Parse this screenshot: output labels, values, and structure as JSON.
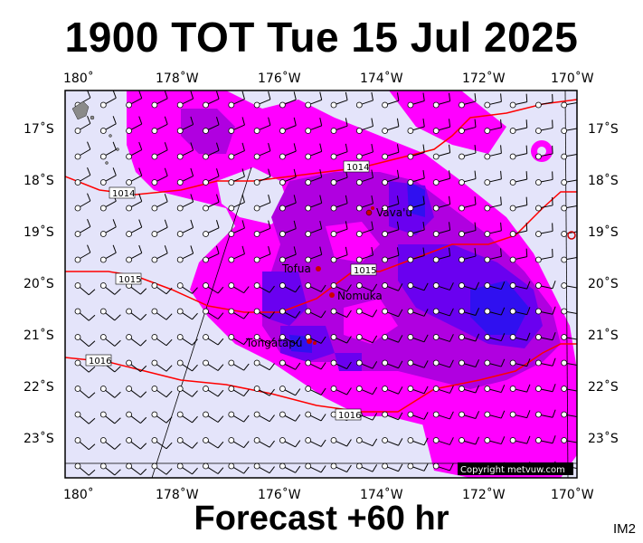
{
  "header": {
    "title": "1900 TOT Tue 15 Jul 2025"
  },
  "footer": {
    "forecast": "Forecast +60 hr",
    "corner_code": "IM2"
  },
  "map": {
    "lon_labels": [
      "180˚",
      "178˚W",
      "176˚W",
      "174˚W",
      "172˚W",
      "170˚W"
    ],
    "lat_labels": [
      "17˚S",
      "18˚S",
      "19˚S",
      "20˚S",
      "21˚S",
      "22˚S",
      "23˚S"
    ],
    "isobar_labels": [
      "1014",
      "1014",
      "1015",
      "1015",
      "1016",
      "1016"
    ],
    "places": [
      {
        "name": "Vava'u"
      },
      {
        "name": "Tofua"
      },
      {
        "name": "Nomuka"
      },
      {
        "name": "Tongatapu"
      }
    ],
    "copyright": "Copyright metvuw.com",
    "colors": {
      "background": "#e4e4fa",
      "rain_light": "#ff00ff",
      "rain_medium": "#b000e0",
      "rain_heavy": "#6a00f0",
      "rain_very_heavy": "#3010f0",
      "isobar": "#ff0000",
      "place_marker": "#cc0000"
    }
  }
}
